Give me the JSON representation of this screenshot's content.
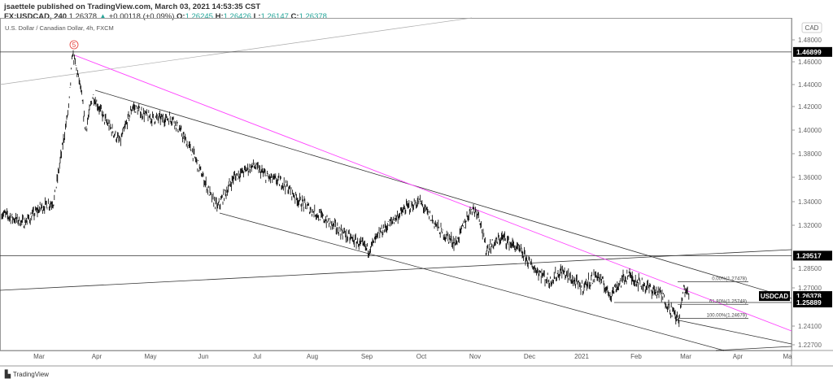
{
  "header": {
    "published": "jsaettele published on TradingView.com, March 03, 2021 14:53:35 CST",
    "symbol": "FX:USDCAD, 240",
    "last": "1.26378",
    "change": "+0.00118 (+0.09%)",
    "o_label": "O:",
    "o": "1.26245",
    "h_label": "H:",
    "h": "1.26426",
    "l_label": "L:",
    "l": "1.26147",
    "c_label": "C:",
    "c": "1.26378"
  },
  "footer": {
    "brand": "TradingView"
  },
  "colors": {
    "up": "#26a69a",
    "trendline_accent": "#ff40ff",
    "candles": "#000000",
    "label_bg": "#000000"
  },
  "chart_data": {
    "type": "candlestick",
    "title": "U.S. Dollar / Canadian Dollar, 4h, FXCM",
    "currency": "CAD",
    "y_ticks": [
      "1.48000",
      "1.46000",
      "1.44000",
      "1.42000",
      "1.40000",
      "1.38000",
      "1.36000",
      "1.34000",
      "1.32000",
      "1.28500",
      "1.27000",
      "1.24100",
      "1.22700"
    ],
    "x_ticks": [
      "Mar",
      "Apr",
      "May",
      "Jun",
      "Jul",
      "Aug",
      "Sep",
      "Oct",
      "Nov",
      "Dec",
      "2021",
      "Feb",
      "Mar",
      "Apr",
      "Ma"
    ],
    "price_labels": [
      {
        "text": "1.46899",
        "value": 1.46899
      },
      {
        "text": "1.29517",
        "value": 1.29517
      },
      {
        "text": "1.26378",
        "value": 1.26378,
        "tag": "USDCAD"
      },
      {
        "text": "1.25889",
        "value": 1.25889
      }
    ],
    "wave_label": "5",
    "fib_levels": [
      {
        "text": "0.00%(1.27478)",
        "value": 1.27478
      },
      {
        "text": "61.80%(1.25748)",
        "value": 1.25748
      },
      {
        "text": "100.00%(1.24679)",
        "value": 1.24679
      }
    ],
    "approx_closes": [
      [
        "2020-02-10",
        1.33
      ],
      [
        "2020-02-22",
        1.322
      ],
      [
        "2020-03-02",
        1.335
      ],
      [
        "2020-03-09",
        1.34
      ],
      [
        "2020-03-13",
        1.38
      ],
      [
        "2020-03-17",
        1.42
      ],
      [
        "2020-03-19",
        1.468
      ],
      [
        "2020-03-23",
        1.44
      ],
      [
        "2020-03-26",
        1.4
      ],
      [
        "2020-03-30",
        1.43
      ],
      [
        "2020-04-05",
        1.41
      ],
      [
        "2020-04-14",
        1.39
      ],
      [
        "2020-04-21",
        1.42
      ],
      [
        "2020-05-01",
        1.41
      ],
      [
        "2020-05-14",
        1.41
      ],
      [
        "2020-05-26",
        1.38
      ],
      [
        "2020-06-05",
        1.345
      ],
      [
        "2020-06-09",
        1.335
      ],
      [
        "2020-06-18",
        1.36
      ],
      [
        "2020-06-29",
        1.37
      ],
      [
        "2020-07-07",
        1.36
      ],
      [
        "2020-07-16",
        1.355
      ],
      [
        "2020-07-25",
        1.34
      ],
      [
        "2020-08-08",
        1.325
      ],
      [
        "2020-08-22",
        1.31
      ],
      [
        "2020-09-02",
        1.3
      ],
      [
        "2020-09-09",
        1.315
      ],
      [
        "2020-09-23",
        1.335
      ],
      [
        "2020-09-30",
        1.34
      ],
      [
        "2020-10-12",
        1.315
      ],
      [
        "2020-10-21",
        1.305
      ],
      [
        "2020-10-30",
        1.335
      ],
      [
        "2020-11-03",
        1.33
      ],
      [
        "2020-11-07",
        1.3
      ],
      [
        "2020-11-16",
        1.31
      ],
      [
        "2020-11-25",
        1.3
      ],
      [
        "2020-12-04",
        1.285
      ],
      [
        "2020-12-13",
        1.275
      ],
      [
        "2020-12-20",
        1.283
      ],
      [
        "2021-01-01",
        1.27
      ],
      [
        "2021-01-10",
        1.28
      ],
      [
        "2021-01-17",
        1.265
      ],
      [
        "2021-01-27",
        1.28
      ],
      [
        "2021-02-08",
        1.27
      ],
      [
        "2021-02-15",
        1.265
      ],
      [
        "2021-02-25",
        1.245
      ],
      [
        "2021-02-28",
        1.27
      ],
      [
        "2021-03-03",
        1.26378
      ]
    ]
  }
}
